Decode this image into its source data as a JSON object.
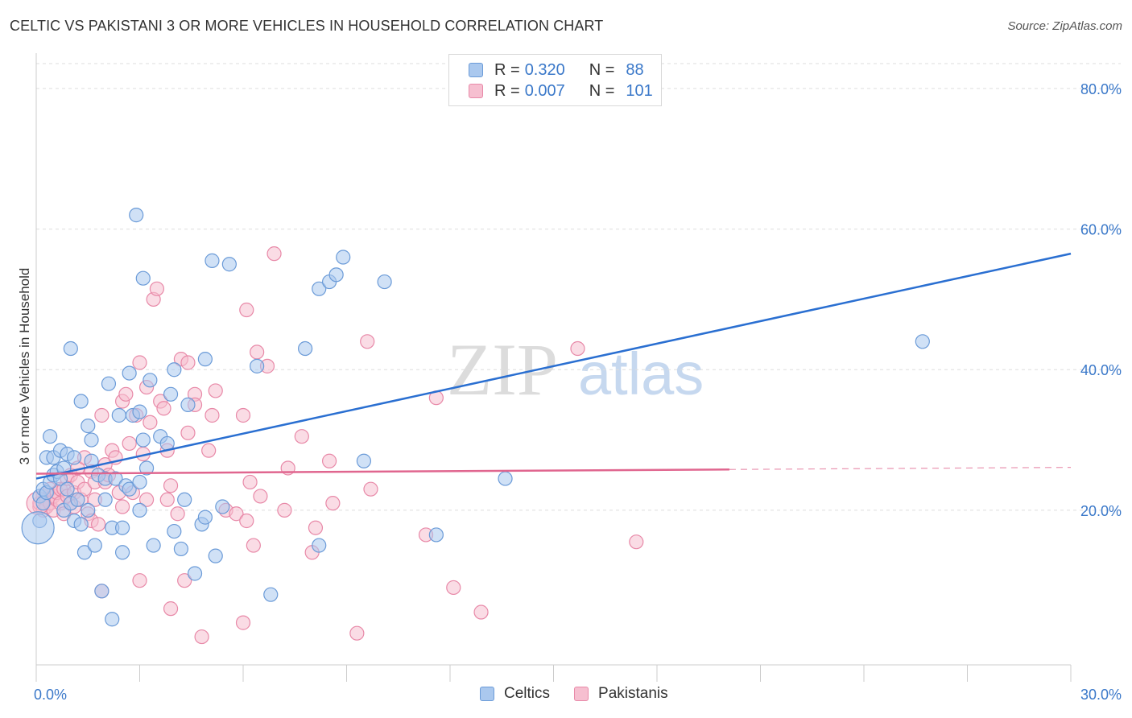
{
  "title": "CELTIC VS PAKISTANI 3 OR MORE VEHICLES IN HOUSEHOLD CORRELATION CHART",
  "source": "Source: ZipAtlas.com",
  "watermark": {
    "zip": "ZIP",
    "atlas": "atlas"
  },
  "legend_box": [
    {
      "r_label": "R =",
      "r_value": "0.320",
      "n_label": "N =",
      "n_value": "88"
    },
    {
      "r_label": "R =",
      "r_value": "0.007",
      "n_label": "N =",
      "n_value": "101"
    }
  ],
  "colors": {
    "celtics_fill": "#aac8ee",
    "celtics_stroke": "#6b9bd8",
    "celtics_line": "#2a6fd1",
    "pakistanis_fill": "#f6bfd0",
    "pakistanis_stroke": "#e889a8",
    "pakistanis_line": "#e0668f",
    "grid": "#dddddd",
    "axis_text": "#3a78c9"
  },
  "chart_data": {
    "type": "scatter",
    "title": "CELTIC VS PAKISTANI 3 OR MORE VEHICLES IN HOUSEHOLD CORRELATION CHART",
    "xlabel": "",
    "ylabel": "3 or more Vehicles in Household",
    "xlim": [
      0,
      30
    ],
    "ylim": [
      -2,
      84
    ],
    "x_tick_labels": [
      "0.0%",
      "30.0%"
    ],
    "y_ticks": [
      20,
      40,
      60,
      80
    ],
    "y_tick_labels": [
      "20.0%",
      "40.0%",
      "60.0%",
      "80.0%"
    ],
    "series": [
      {
        "name": "Celtics",
        "r": 0.32,
        "n": 88,
        "trend": {
          "x": [
            0,
            30
          ],
          "y": [
            24.5,
            56.5
          ]
        },
        "points": [
          [
            0.1,
            18.5
          ],
          [
            0.1,
            22
          ],
          [
            0.2,
            21
          ],
          [
            0.2,
            23
          ],
          [
            0.3,
            22.5
          ],
          [
            0.3,
            27.5
          ],
          [
            0.4,
            24
          ],
          [
            0.4,
            30.5
          ],
          [
            0.5,
            25
          ],
          [
            0.5,
            27.5
          ],
          [
            0.6,
            25.5
          ],
          [
            0.7,
            24.5
          ],
          [
            0.7,
            28.5
          ],
          [
            0.8,
            20
          ],
          [
            0.8,
            26
          ],
          [
            0.9,
            23
          ],
          [
            0.9,
            28
          ],
          [
            1.0,
            43
          ],
          [
            1.0,
            21
          ],
          [
            1.1,
            18.5
          ],
          [
            1.1,
            27.5
          ],
          [
            1.2,
            21.5
          ],
          [
            1.3,
            35.5
          ],
          [
            1.3,
            18
          ],
          [
            1.4,
            14
          ],
          [
            1.5,
            20
          ],
          [
            1.5,
            32
          ],
          [
            1.6,
            27
          ],
          [
            1.6,
            30
          ],
          [
            1.7,
            15
          ],
          [
            1.8,
            25
          ],
          [
            1.9,
            8.5
          ],
          [
            2.0,
            21.5
          ],
          [
            2.0,
            24.5
          ],
          [
            2.1,
            38
          ],
          [
            2.2,
            17.5
          ],
          [
            2.2,
            4.5
          ],
          [
            2.3,
            24.5
          ],
          [
            2.4,
            33.5
          ],
          [
            2.5,
            14
          ],
          [
            2.5,
            17.5
          ],
          [
            2.6,
            23.5
          ],
          [
            2.7,
            23
          ],
          [
            2.7,
            39.5
          ],
          [
            2.8,
            33.5
          ],
          [
            2.9,
            62
          ],
          [
            3.0,
            20
          ],
          [
            3.0,
            24
          ],
          [
            3.0,
            34
          ],
          [
            3.1,
            30
          ],
          [
            3.1,
            53
          ],
          [
            3.2,
            26
          ],
          [
            3.3,
            38.5
          ],
          [
            3.4,
            15
          ],
          [
            3.6,
            30.5
          ],
          [
            3.8,
            29.5
          ],
          [
            3.9,
            36.5
          ],
          [
            4.0,
            17
          ],
          [
            4.0,
            40
          ],
          [
            4.2,
            14.5
          ],
          [
            4.3,
            21.5
          ],
          [
            4.4,
            35
          ],
          [
            4.6,
            11
          ],
          [
            4.8,
            18
          ],
          [
            4.9,
            41.5
          ],
          [
            4.9,
            19
          ],
          [
            5.1,
            55.5
          ],
          [
            5.2,
            13.5
          ],
          [
            5.4,
            20.5
          ],
          [
            5.6,
            55
          ],
          [
            6.4,
            40.5
          ],
          [
            6.8,
            8
          ],
          [
            7.8,
            43
          ],
          [
            8.2,
            51.5
          ],
          [
            8.2,
            15
          ],
          [
            8.5,
            52.5
          ],
          [
            8.7,
            53.5
          ],
          [
            8.9,
            56
          ],
          [
            9.5,
            27
          ],
          [
            10.1,
            52.5
          ],
          [
            11.6,
            16.5
          ],
          [
            13.6,
            24.5
          ],
          [
            25.7,
            44
          ]
        ],
        "big_point": [
          0.05,
          17.5
        ]
      },
      {
        "name": "Pakistanis",
        "r": 0.007,
        "n": 101,
        "trend": {
          "x": [
            0,
            20.1
          ],
          "y": [
            25.2,
            25.8
          ]
        },
        "trend_dashed": {
          "x": [
            20.1,
            30
          ],
          "y": [
            25.8,
            26.1
          ]
        },
        "points": [
          [
            0.1,
            20.5
          ],
          [
            0.1,
            21
          ],
          [
            0.2,
            22
          ],
          [
            0.2,
            20
          ],
          [
            0.3,
            21.5
          ],
          [
            0.3,
            20.5
          ],
          [
            0.4,
            23
          ],
          [
            0.4,
            21
          ],
          [
            0.5,
            22
          ],
          [
            0.5,
            20
          ],
          [
            0.6,
            21.5
          ],
          [
            0.6,
            22.5
          ],
          [
            0.7,
            23
          ],
          [
            0.7,
            21
          ],
          [
            0.8,
            23
          ],
          [
            0.8,
            19.5
          ],
          [
            0.9,
            24.5
          ],
          [
            0.9,
            22
          ],
          [
            1.0,
            21
          ],
          [
            1.0,
            25
          ],
          [
            1.1,
            22.5
          ],
          [
            1.1,
            20.5
          ],
          [
            1.2,
            24
          ],
          [
            1.2,
            26
          ],
          [
            1.3,
            21.5
          ],
          [
            1.4,
            23
          ],
          [
            1.4,
            27.5
          ],
          [
            1.5,
            19.5
          ],
          [
            1.6,
            25.5
          ],
          [
            1.6,
            18.5
          ],
          [
            1.7,
            24
          ],
          [
            1.7,
            21.5
          ],
          [
            1.8,
            18
          ],
          [
            1.9,
            8.5
          ],
          [
            1.9,
            33.5
          ],
          [
            2.0,
            24
          ],
          [
            2.0,
            26.5
          ],
          [
            2.1,
            25
          ],
          [
            2.2,
            28.5
          ],
          [
            2.3,
            27.5
          ],
          [
            2.4,
            22.5
          ],
          [
            2.5,
            35.5
          ],
          [
            2.5,
            20.5
          ],
          [
            2.6,
            36.5
          ],
          [
            2.7,
            29.5
          ],
          [
            2.8,
            22.5
          ],
          [
            2.9,
            33.5
          ],
          [
            3.0,
            41
          ],
          [
            3.0,
            10
          ],
          [
            3.1,
            28
          ],
          [
            3.2,
            21.5
          ],
          [
            3.2,
            37.5
          ],
          [
            3.3,
            32.5
          ],
          [
            3.4,
            50
          ],
          [
            3.5,
            51.5
          ],
          [
            3.6,
            35.5
          ],
          [
            3.7,
            34.5
          ],
          [
            3.8,
            28.5
          ],
          [
            3.8,
            21.5
          ],
          [
            3.9,
            23.5
          ],
          [
            3.9,
            6
          ],
          [
            4.1,
            19.5
          ],
          [
            4.2,
            41.5
          ],
          [
            4.3,
            10
          ],
          [
            4.4,
            31
          ],
          [
            4.4,
            41
          ],
          [
            4.6,
            36.5
          ],
          [
            4.6,
            35
          ],
          [
            4.8,
            2
          ],
          [
            5.0,
            28.5
          ],
          [
            5.1,
            33.5
          ],
          [
            5.2,
            37
          ],
          [
            5.5,
            20
          ],
          [
            5.8,
            19.5
          ],
          [
            6.0,
            4
          ],
          [
            6.0,
            33.5
          ],
          [
            6.1,
            18.5
          ],
          [
            6.1,
            48.5
          ],
          [
            6.2,
            24
          ],
          [
            6.4,
            42.5
          ],
          [
            6.3,
            15
          ],
          [
            6.5,
            22
          ],
          [
            6.7,
            40.5
          ],
          [
            6.9,
            56.5
          ],
          [
            7.2,
            20
          ],
          [
            7.3,
            26
          ],
          [
            7.7,
            30.5
          ],
          [
            8.0,
            14
          ],
          [
            8.1,
            17.5
          ],
          [
            8.5,
            27
          ],
          [
            8.6,
            21
          ],
          [
            9.3,
            2.5
          ],
          [
            9.6,
            44
          ],
          [
            9.7,
            23
          ],
          [
            11.3,
            16.5
          ],
          [
            11.6,
            36
          ],
          [
            12.1,
            9
          ],
          [
            12.9,
            5.5
          ],
          [
            15.7,
            43
          ],
          [
            17.4,
            15.5
          ]
        ],
        "big_point": [
          0.05,
          21
        ]
      }
    ]
  },
  "bottom_legend": {
    "celtics": "Celtics",
    "pakistanis": "Pakistanis"
  }
}
